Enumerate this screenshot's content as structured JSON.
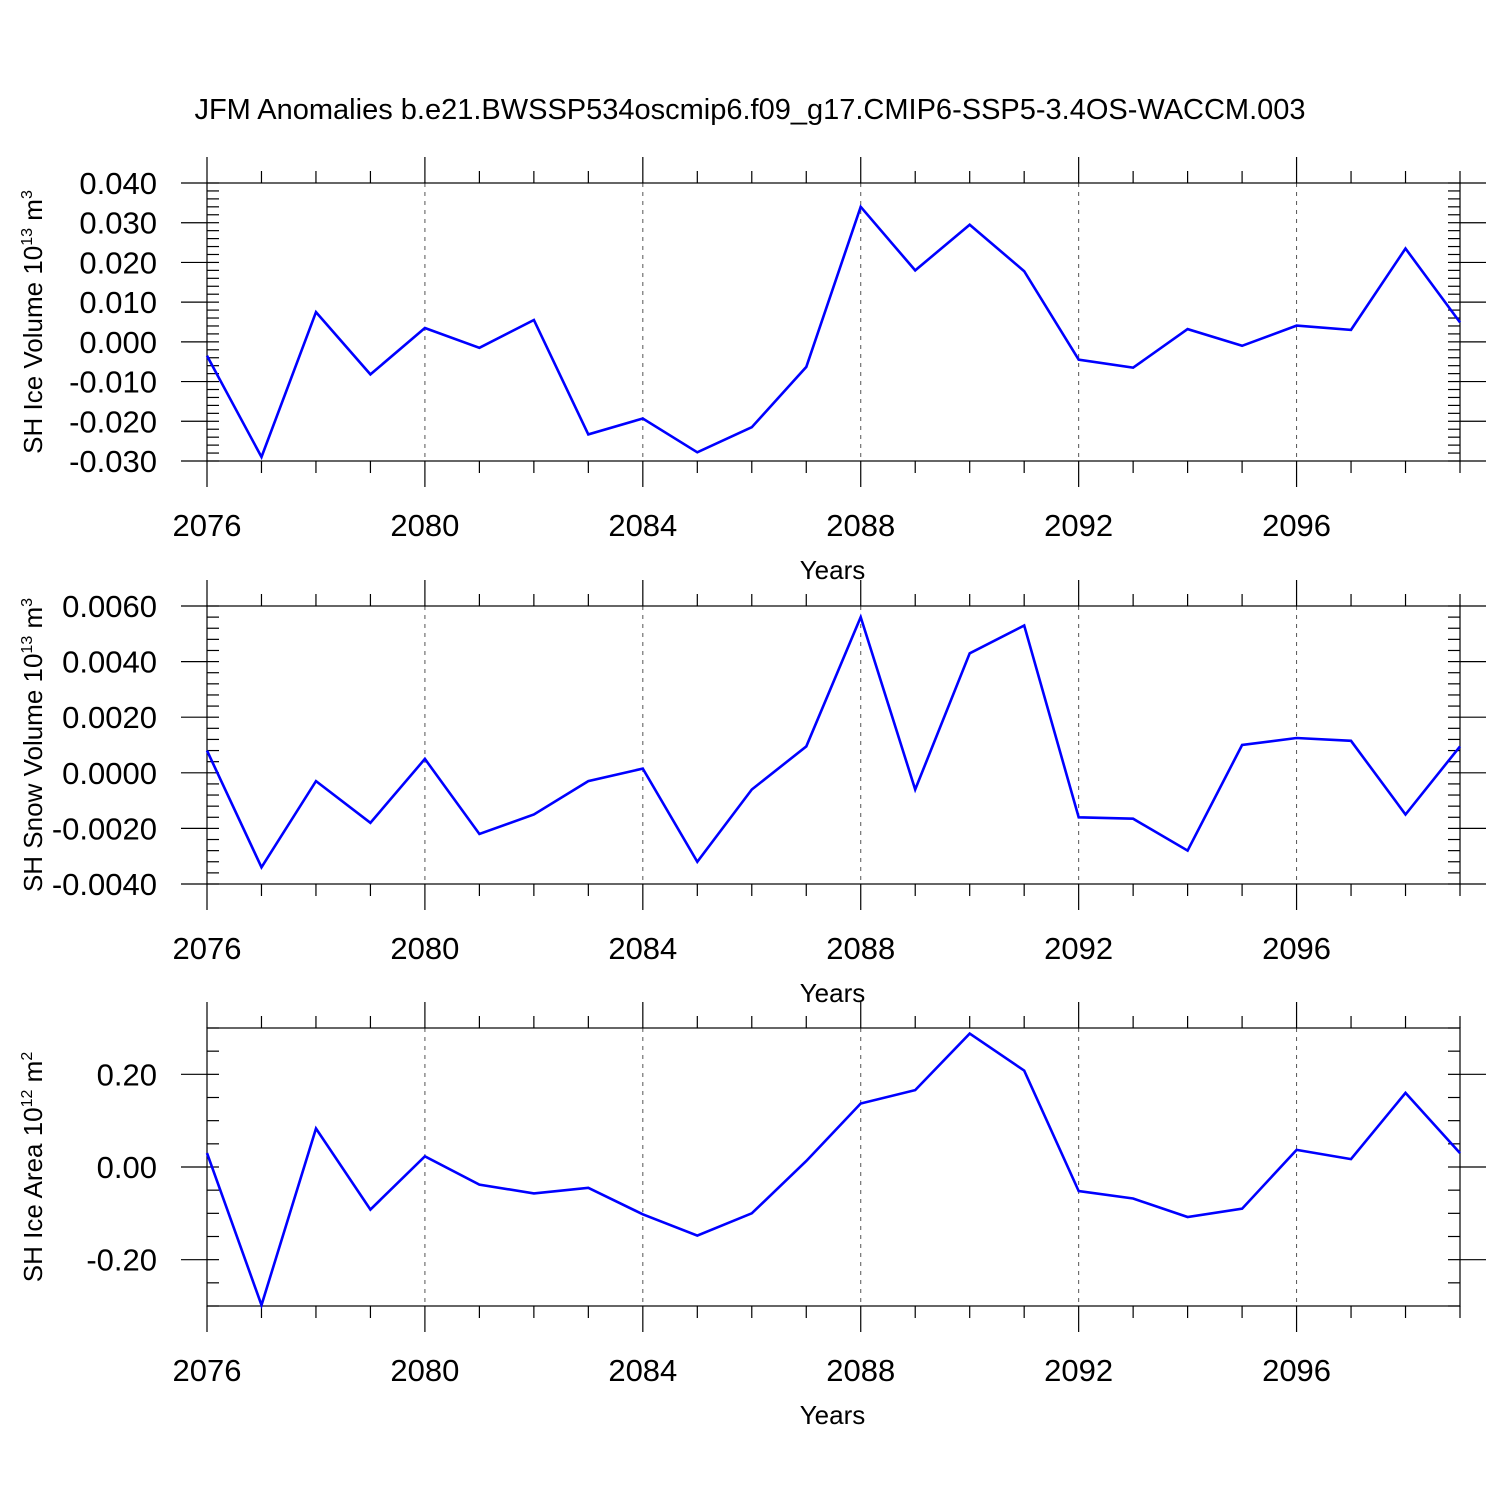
{
  "title": "JFM Anomalies b.e21.BWSSP534oscmip6.f09_g17.CMIP6-SSP5-3.4OS-WACCM.003",
  "colors": {
    "line": "#0000ff",
    "axis": "#000000",
    "grid": "#555555"
  },
  "chart_data": [
    {
      "type": "line",
      "xlabel": "Years",
      "ylabel": {
        "text": "SH Ice Volume 10",
        "exp": "13",
        "unit": " m",
        "unit_exp": "3"
      },
      "xlim": [
        2076,
        2099
      ],
      "ylim": [
        -0.03,
        0.04
      ],
      "x_ticks": [
        2076,
        2080,
        2084,
        2088,
        2092,
        2096
      ],
      "y_ticks": [
        -0.03,
        -0.02,
        -0.01,
        0.0,
        0.01,
        0.02,
        0.03,
        0.04
      ],
      "y_tick_labels": [
        "-0.030",
        "-0.020",
        "-0.010",
        "0.000",
        "0.010",
        "0.020",
        "0.030",
        "0.040"
      ],
      "y_minor_step": 0.002,
      "grid_x": true,
      "x": [
        2076,
        2077,
        2078,
        2079,
        2080,
        2081,
        2082,
        2083,
        2084,
        2085,
        2086,
        2087,
        2088,
        2089,
        2090,
        2091,
        2092,
        2093,
        2094,
        2095,
        2096,
        2097,
        2098,
        2099
      ],
      "values": [
        -0.0035,
        -0.029,
        0.0075,
        -0.0082,
        0.0035,
        -0.0015,
        0.0055,
        -0.0233,
        -0.0193,
        -0.0278,
        -0.0215,
        -0.0063,
        0.034,
        0.018,
        0.0295,
        0.0178,
        -0.0045,
        -0.0065,
        0.0032,
        -0.001,
        0.0041,
        0.003,
        0.0235,
        0.0049
      ]
    },
    {
      "type": "line",
      "xlabel": "Years",
      "ylabel": {
        "text": "SH Snow Volume 10",
        "exp": "13",
        "unit": " m",
        "unit_exp": "3"
      },
      "xlim": [
        2076,
        2099
      ],
      "ylim": [
        -0.004,
        0.006
      ],
      "x_ticks": [
        2076,
        2080,
        2084,
        2088,
        2092,
        2096
      ],
      "y_ticks": [
        -0.004,
        -0.002,
        0.0,
        0.002,
        0.004,
        0.006
      ],
      "y_tick_labels": [
        "-0.0040",
        "-0.0020",
        "0.0000",
        "0.0020",
        "0.0040",
        "0.0060"
      ],
      "y_minor_step": 0.0004,
      "grid_x": true,
      "x": [
        2076,
        2077,
        2078,
        2079,
        2080,
        2081,
        2082,
        2083,
        2084,
        2085,
        2086,
        2087,
        2088,
        2089,
        2090,
        2091,
        2092,
        2093,
        2094,
        2095,
        2096,
        2097,
        2098,
        2099
      ],
      "values": [
        0.0008,
        -0.0034,
        -0.0003,
        -0.0018,
        0.0005,
        -0.0022,
        -0.0015,
        -0.0003,
        0.00015,
        -0.0032,
        -0.0006,
        0.00095,
        0.0056,
        -0.0006,
        0.0043,
        0.0053,
        -0.0016,
        -0.00165,
        -0.0028,
        0.001,
        0.00125,
        0.00115,
        -0.0015,
        0.00095
      ]
    },
    {
      "type": "line",
      "xlabel": "Years",
      "ylabel": {
        "text": "SH Ice Area 10",
        "exp": "12",
        "unit": " m",
        "unit_exp": "2"
      },
      "xlim": [
        2076,
        2099
      ],
      "ylim": [
        -0.3,
        0.3
      ],
      "x_ticks": [
        2076,
        2080,
        2084,
        2088,
        2092,
        2096
      ],
      "y_ticks": [
        -0.2,
        0.0,
        0.2
      ],
      "y_tick_labels": [
        "-0.20",
        "0.00",
        "0.20"
      ],
      "y_minor_step": 0.05,
      "grid_x": true,
      "x": [
        2076,
        2077,
        2078,
        2079,
        2080,
        2081,
        2082,
        2083,
        2084,
        2085,
        2086,
        2087,
        2088,
        2089,
        2090,
        2091,
        2092,
        2093,
        2094,
        2095,
        2096,
        2097,
        2098,
        2099
      ],
      "values": [
        0.03,
        -0.298,
        0.083,
        -0.092,
        0.023,
        -0.038,
        -0.057,
        -0.045,
        -0.102,
        -0.148,
        -0.1,
        0.013,
        0.137,
        0.166,
        0.288,
        0.208,
        -0.052,
        -0.068,
        -0.108,
        -0.09,
        0.037,
        0.017,
        0.16,
        0.03
      ]
    }
  ]
}
